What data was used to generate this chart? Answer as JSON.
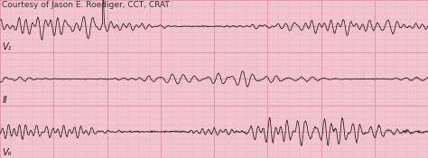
{
  "title_text": "Courtesy of Jason E. Roediger, CCT, CRAT",
  "title_fontsize": 6.5,
  "bg_color": "#f2c4cc",
  "grid_major_color": "#d9909a",
  "grid_minor_color": "#e8aab4",
  "line_color": "#1a1a1a",
  "lead_labels": [
    "V₁",
    "II",
    "V₆"
  ],
  "label_fontsize": 7,
  "figsize": [
    4.74,
    1.75
  ],
  "dpi": 100,
  "seed": 7
}
